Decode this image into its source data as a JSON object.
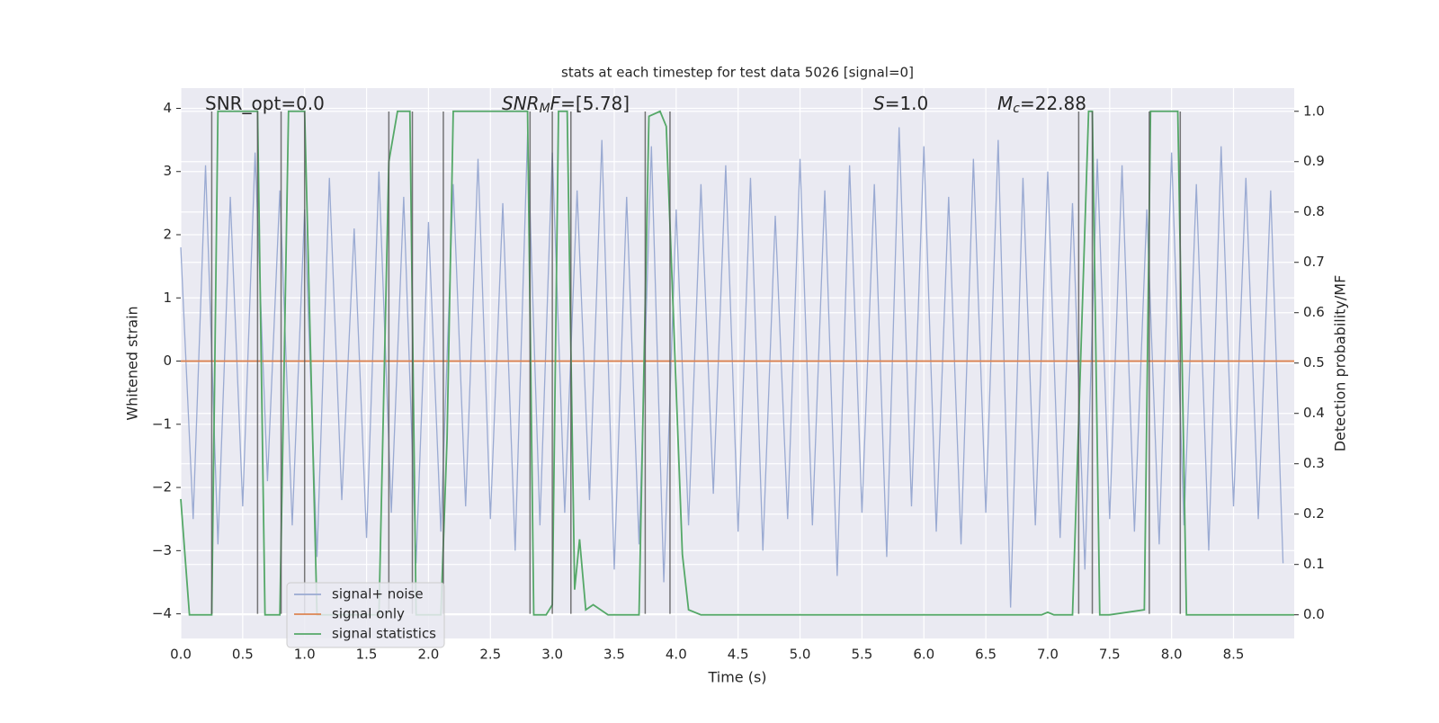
{
  "chart_data": {
    "type": "line",
    "title": "stats at each timestep for test data 5026 [signal=0]",
    "xlabel": "Time (s)",
    "ylabel": "Whitened strain",
    "y2label": "Detection probability/MF",
    "xlim": [
      0,
      8.99
    ],
    "ylim": [
      -4.39,
      4.32
    ],
    "y2lim": [
      -0.047,
      1.046
    ],
    "xticks": [
      {
        "value": 0,
        "label": "0.0"
      },
      {
        "value": 0.5,
        "label": "0.5"
      },
      {
        "value": 1,
        "label": "1.0"
      },
      {
        "value": 1.5,
        "label": "1.5"
      },
      {
        "value": 2,
        "label": "2.0"
      },
      {
        "value": 2.5,
        "label": "2.5"
      },
      {
        "value": 3,
        "label": "3.0"
      },
      {
        "value": 3.5,
        "label": "3.5"
      },
      {
        "value": 4,
        "label": "4.0"
      },
      {
        "value": 4.5,
        "label": "4.5"
      },
      {
        "value": 5,
        "label": "5.0"
      },
      {
        "value": 5.5,
        "label": "5.5"
      },
      {
        "value": 6,
        "label": "6.0"
      },
      {
        "value": 6.5,
        "label": "6.5"
      },
      {
        "value": 7,
        "label": "7.0"
      },
      {
        "value": 7.5,
        "label": "7.5"
      },
      {
        "value": 8,
        "label": "8.0"
      },
      {
        "value": 8.5,
        "label": "8.5"
      }
    ],
    "yticks": [
      {
        "value": -4,
        "label": "−4"
      },
      {
        "value": -3,
        "label": "−3"
      },
      {
        "value": -2,
        "label": "−2"
      },
      {
        "value": -1,
        "label": "−1"
      },
      0,
      1,
      2,
      3,
      4
    ],
    "y2ticks": [
      {
        "value": 0,
        "label": "0.0"
      },
      0.1,
      0.2,
      0.3,
      0.4,
      0.5,
      0.6,
      0.7,
      0.8,
      0.9,
      {
        "value": 1,
        "label": "1.0"
      }
    ],
    "grid": true,
    "legend": "lower left",
    "series": [
      {
        "name": "signal+ noise",
        "color": "#9aaad2",
        "x": [
          0.0,
          0.1,
          0.2,
          0.3,
          0.4,
          0.5,
          0.6,
          0.7,
          0.8,
          0.9,
          1.0,
          1.1,
          1.2,
          1.3,
          1.4,
          1.5,
          1.6,
          1.7,
          1.8,
          1.9,
          2.0,
          2.1,
          2.2,
          2.3,
          2.4,
          2.5,
          2.6,
          2.7,
          2.8,
          2.9,
          3.0,
          3.1,
          3.2,
          3.3,
          3.4,
          3.5,
          3.6,
          3.7,
          3.8,
          3.9,
          4.0,
          4.1,
          4.2,
          4.3,
          4.4,
          4.5,
          4.6,
          4.7,
          4.8,
          4.9,
          5.0,
          5.1,
          5.2,
          5.3,
          5.4,
          5.5,
          5.6,
          5.7,
          5.8,
          5.9,
          6.0,
          6.1,
          6.2,
          6.3,
          6.4,
          6.5,
          6.6,
          6.7,
          6.8,
          6.9,
          7.0,
          7.1,
          7.2,
          7.3,
          7.4,
          7.5,
          7.6,
          7.7,
          7.8,
          7.9,
          8.0,
          8.1,
          8.2,
          8.3,
          8.4,
          8.5,
          8.6,
          8.7,
          8.8,
          8.9
        ],
        "values": [
          1.8,
          -2.5,
          3.1,
          -2.9,
          2.6,
          -2.3,
          3.3,
          -1.9,
          2.7,
          -2.6,
          2.4,
          -3.1,
          2.9,
          -2.2,
          2.1,
          -2.8,
          3.0,
          -2.4,
          2.6,
          -3.2,
          2.2,
          -2.7,
          2.8,
          -2.3,
          3.2,
          -2.5,
          2.5,
          -3.0,
          3.6,
          -2.6,
          3.3,
          -2.4,
          2.7,
          -2.2,
          3.5,
          -3.3,
          2.6,
          -2.9,
          3.4,
          -3.5,
          2.4,
          -2.6,
          2.8,
          -2.1,
          3.1,
          -2.7,
          2.9,
          -3.0,
          2.3,
          -2.5,
          3.2,
          -2.6,
          2.7,
          -3.4,
          3.1,
          -2.4,
          2.8,
          -3.1,
          3.7,
          -2.3,
          3.4,
          -2.7,
          2.6,
          -2.9,
          3.2,
          -2.4,
          3.5,
          -3.9,
          2.9,
          -2.6,
          3.0,
          -2.8,
          2.5,
          -3.3,
          3.2,
          -2.5,
          3.1,
          -2.7,
          2.4,
          -2.9,
          3.3,
          -2.6,
          2.8,
          -3.0,
          3.4,
          -2.3,
          2.9,
          -2.5,
          2.7,
          -3.2
        ]
      },
      {
        "name": "signal only",
        "color": "#dd8452",
        "x": [
          0,
          8.99
        ],
        "values": [
          0,
          0
        ]
      },
      {
        "name": "signal statistics",
        "color": "#55a868",
        "axis": "y2",
        "x": [
          0,
          0.07,
          0.25,
          0.3,
          0.62,
          0.68,
          0.8,
          0.87,
          1.0,
          1.1,
          1.6,
          1.68,
          1.75,
          1.85,
          1.9,
          2.1,
          2.15,
          2.2,
          2.8,
          2.85,
          2.95,
          3.0,
          3.05,
          3.12,
          3.18,
          3.22,
          3.27,
          3.33,
          3.45,
          3.7,
          3.78,
          3.87,
          3.92,
          4.05,
          4.1,
          4.2,
          6.95,
          7.0,
          7.05,
          7.2,
          7.33,
          7.36,
          7.42,
          7.5,
          7.78,
          7.83,
          8.05,
          8.12,
          8.99
        ],
        "values": [
          0.23,
          0,
          0,
          1,
          1,
          0,
          0,
          1,
          1,
          0,
          0,
          0.9,
          1,
          1,
          0,
          0,
          0.35,
          1,
          1,
          0,
          0,
          0.02,
          1,
          1,
          0.05,
          0.15,
          0.01,
          0.02,
          0,
          0,
          0.99,
          1,
          0.97,
          0.12,
          0.01,
          0,
          0,
          0.005,
          0,
          0,
          1,
          1,
          0,
          0,
          0.01,
          1,
          1,
          0,
          0
        ]
      }
    ],
    "vlines": [
      0.25,
      0.62,
      0.81,
      1.0,
      1.68,
      1.87,
      2.12,
      2.82,
      3.0,
      3.15,
      3.75,
      3.95,
      7.25,
      7.36,
      7.82,
      8.07
    ],
    "vline_color": "#555555",
    "annotations": [
      [
        {
          "text": "SNR_opt=0.0"
        }
      ],
      [
        {
          "text": "SNR",
          "style": "italic"
        },
        {
          "text": "M",
          "style": "italic-sub"
        },
        {
          "text": "F",
          "style": "italic"
        },
        {
          "text": "=[5.78]"
        }
      ],
      [
        {
          "text": "S",
          "style": "italic"
        },
        {
          "text": "=1.0"
        }
      ],
      [
        {
          "text": "M",
          "style": "italic"
        },
        {
          "text": "c",
          "style": "italic-sub"
        },
        {
          "text": "=22.88"
        }
      ]
    ]
  }
}
